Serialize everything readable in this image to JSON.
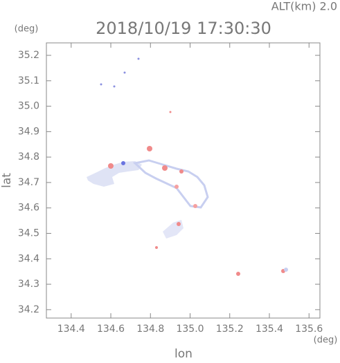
{
  "chart_data": {
    "type": "radar-map",
    "title": "2018/10/19 17:30:30",
    "subtitle": "ALT(km) 2.0",
    "x_label": "lon",
    "y_label": "lat",
    "x_unit": "(deg)",
    "y_unit": "(deg)",
    "xlim": [
      134.275,
      135.655
    ],
    "ylim": [
      34.167,
      35.249
    ],
    "xticks": [
      134.4,
      134.6,
      134.8,
      {
        "value": 135.0,
        "label": "135.0"
      },
      135.2,
      135.4,
      135.6
    ],
    "yticks": [
      34.2,
      34.3,
      34.4,
      34.5,
      34.6,
      34.7,
      34.8,
      34.9,
      {
        "value": 35.0,
        "label": "35.0"
      },
      35.1,
      35.2
    ]
  }
}
